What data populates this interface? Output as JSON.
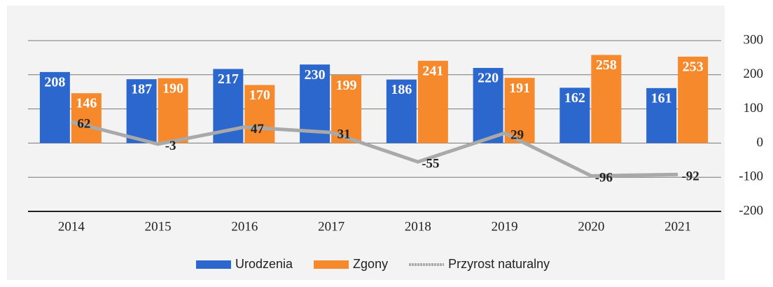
{
  "chart_data": {
    "type": "bar",
    "categories": [
      "2014",
      "2015",
      "2016",
      "2017",
      "2018",
      "2019",
      "2020",
      "2021"
    ],
    "series": [
      {
        "name": "Urodzenia",
        "color": "#2b67cc",
        "values": [
          208,
          187,
          217,
          230,
          186,
          220,
          162,
          161
        ]
      },
      {
        "name": "Zgony",
        "color": "#f5892c",
        "values": [
          146,
          190,
          170,
          199,
          241,
          191,
          258,
          253
        ]
      },
      {
        "name": "Przyrost naturalny",
        "color": "#a9a9a9",
        "type": "line",
        "values": [
          62,
          -3,
          47,
          31,
          -55,
          29,
          -96,
          -92
        ]
      }
    ],
    "ylim": [
      -200,
      300
    ],
    "yticks": [
      -200,
      -100,
      0,
      100,
      200,
      300
    ],
    "grid": true,
    "legend": "bottom"
  }
}
